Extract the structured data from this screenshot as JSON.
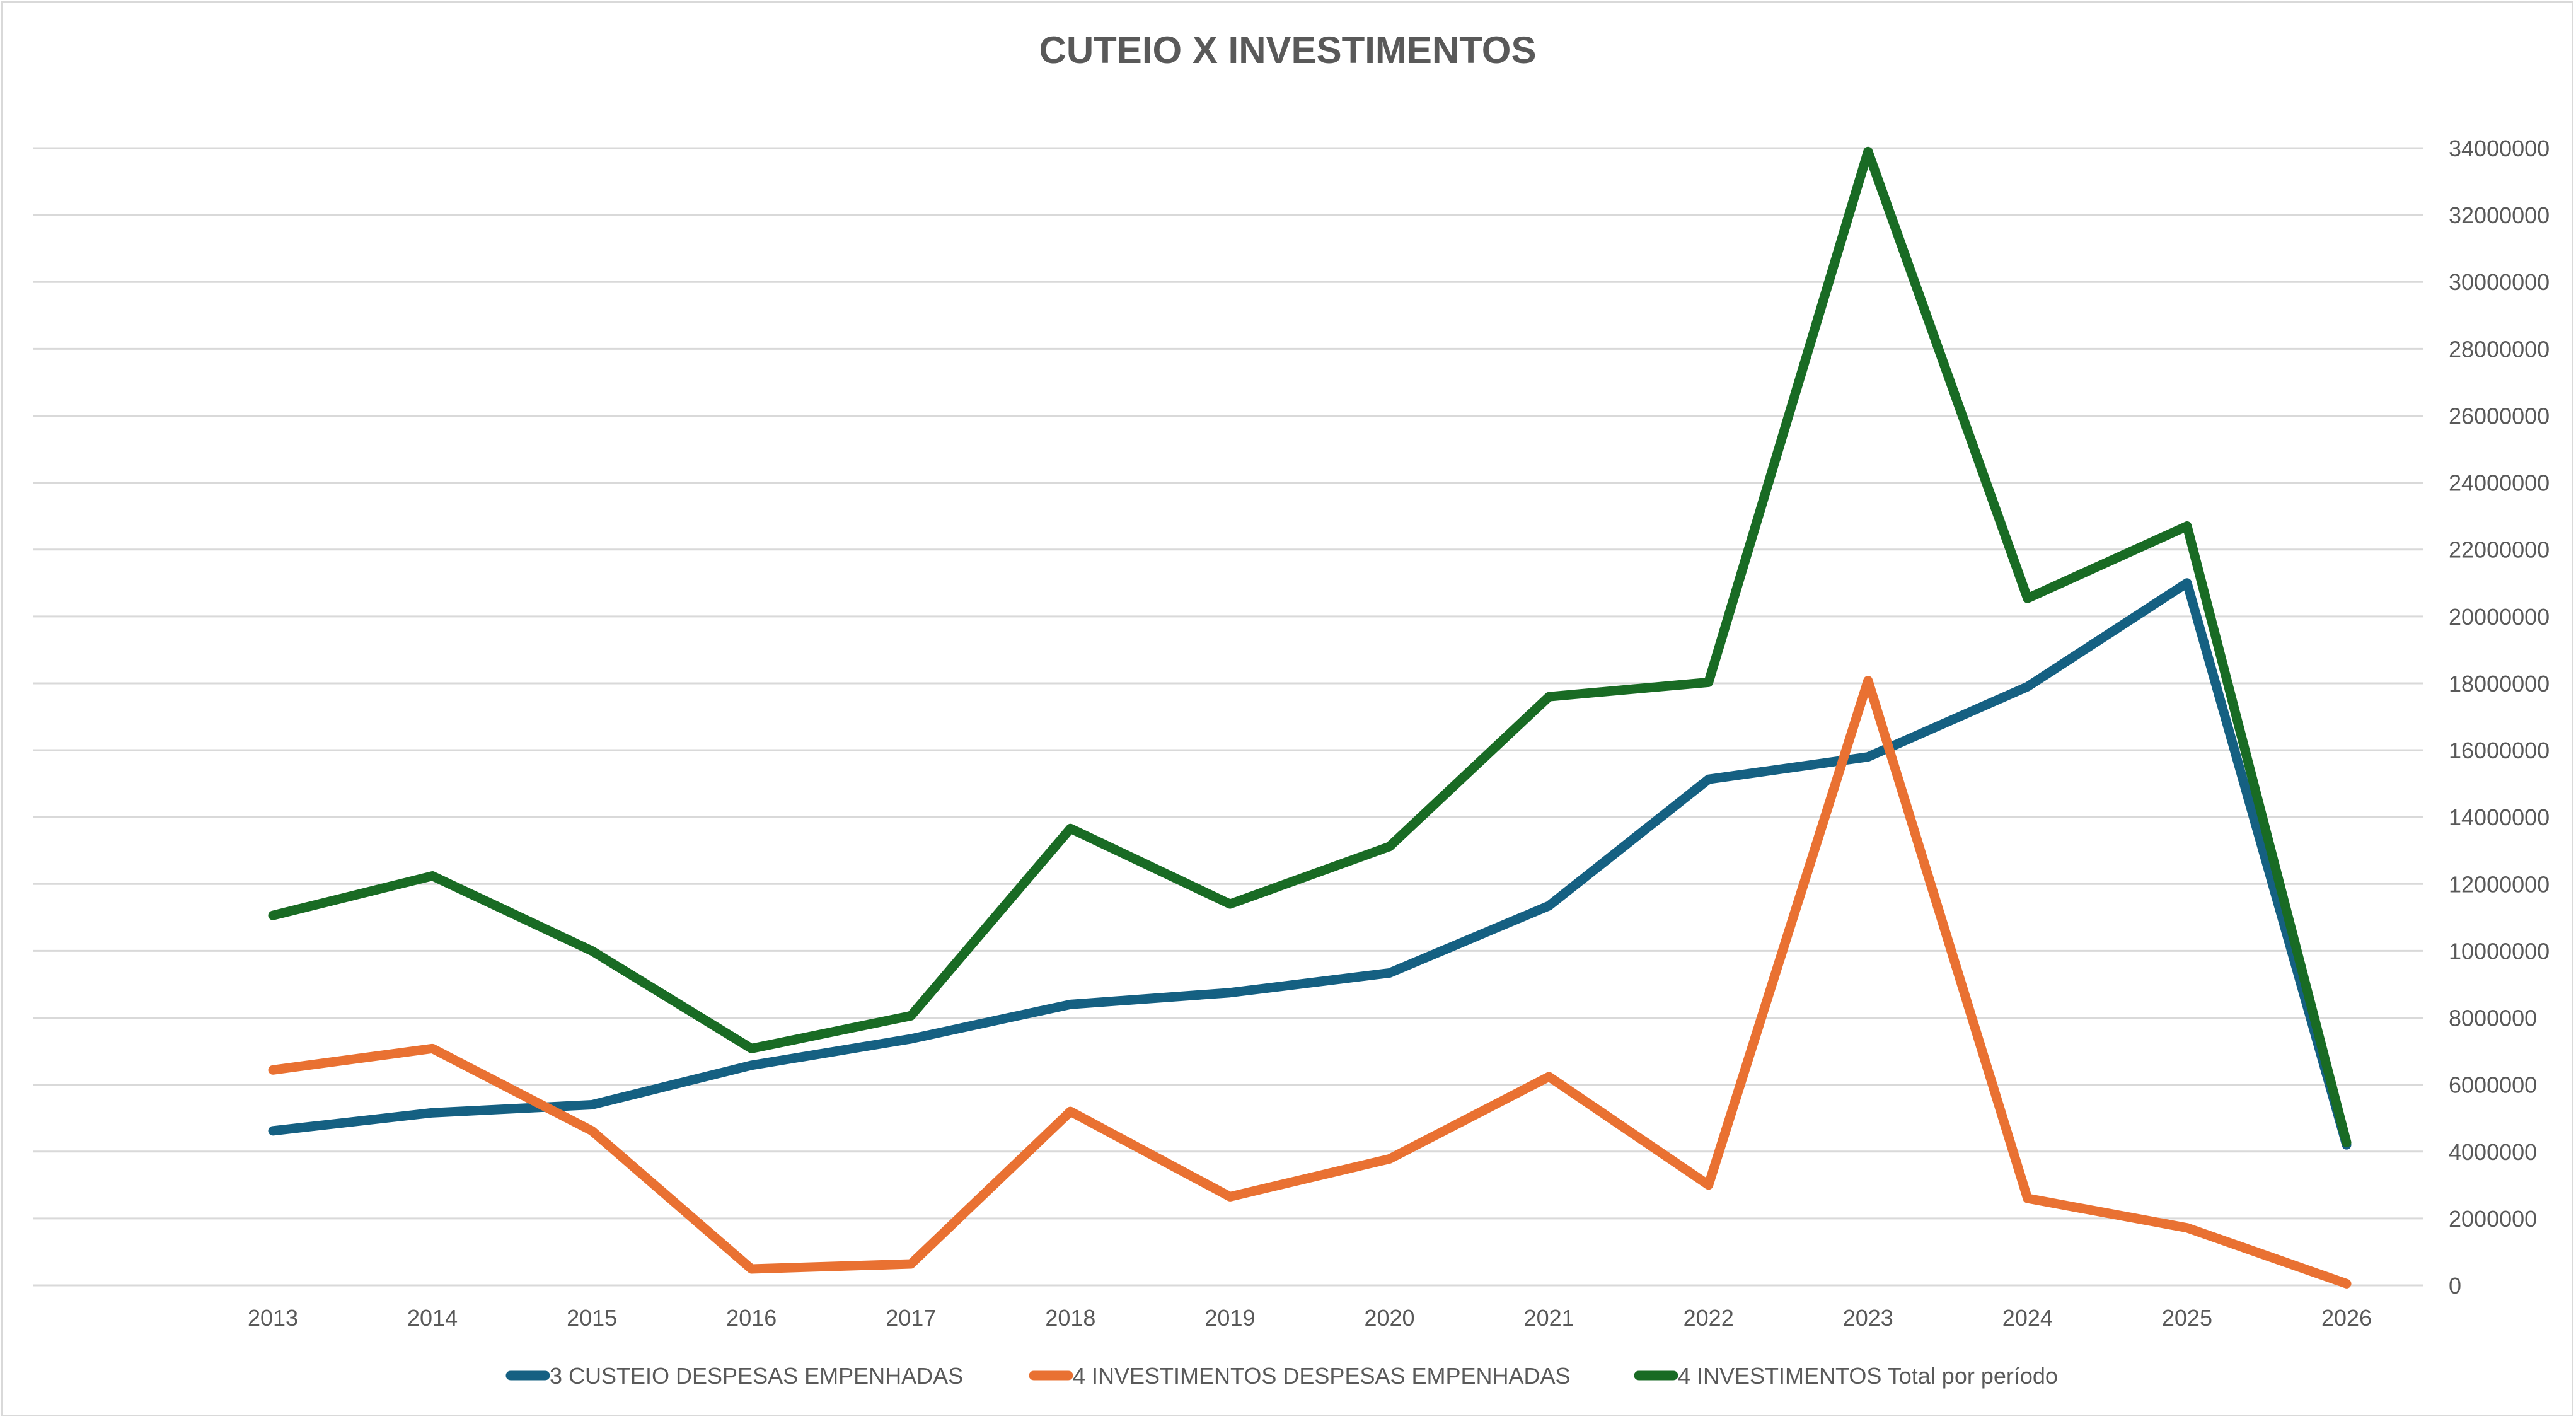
{
  "chart_data": {
    "type": "line",
    "title": "CUTEIO X INVESTIMENTOS",
    "xlabel": "",
    "ylabel": "",
    "x": [
      "2013",
      "2014",
      "2015",
      "2016",
      "2017",
      "2018",
      "2019",
      "2020",
      "2021",
      "2022",
      "2023",
      "2024",
      "2025",
      "2026"
    ],
    "ylim": [
      0,
      34000000
    ],
    "yticks": [
      0,
      2000000,
      4000000,
      6000000,
      8000000,
      10000000,
      12000000,
      14000000,
      16000000,
      18000000,
      20000000,
      22000000,
      24000000,
      26000000,
      28000000,
      30000000,
      32000000,
      34000000
    ],
    "y_axis_side": "right",
    "grid": true,
    "legend_position": "bottom",
    "series": [
      {
        "name": "3 CUSTEIO DESPESAS EMPENHADAS",
        "color": "#156082",
        "values": [
          4620000,
          5160000,
          5400000,
          6580000,
          7370000,
          8400000,
          8750000,
          9340000,
          11350000,
          15130000,
          15800000,
          17900000,
          21000000,
          4200000
        ]
      },
      {
        "name": "4 INVESTIMENTOS DESPESAS EMPENHADAS",
        "color": "#E97132",
        "values": [
          6440000,
          7080000,
          4620000,
          490000,
          640000,
          5200000,
          2650000,
          3780000,
          6240000,
          3000000,
          18080000,
          2600000,
          1720000,
          50000
        ]
      },
      {
        "name": "4 INVESTIMENTOS Total por período",
        "color": "#196B24",
        "values": [
          11060000,
          12240000,
          10000000,
          7080000,
          8060000,
          13660000,
          11400000,
          13120000,
          17600000,
          18030000,
          33900000,
          20540000,
          22700000,
          4270000
        ]
      }
    ]
  }
}
